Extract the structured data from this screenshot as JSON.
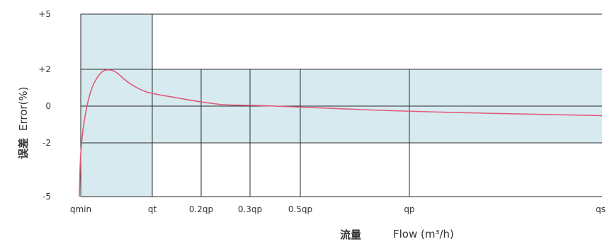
{
  "chart_data": {
    "type": "line",
    "title": "",
    "ylabel_cn": "误差",
    "ylabel": "Error(%)",
    "xlabel_cn": "流量",
    "xlabel": "Flow (m³/h)",
    "y_ticks": [
      {
        "value": 5,
        "label": "+5"
      },
      {
        "value": 2,
        "label": "+2"
      },
      {
        "value": 0,
        "label": "0"
      },
      {
        "value": -2,
        "label": "-2"
      },
      {
        "value": -5,
        "label": "-5"
      }
    ],
    "ylim": [
      -5,
      5
    ],
    "x_categories": [
      {
        "key": "qmin",
        "label": "qmin"
      },
      {
        "key": "qt",
        "label": "qt"
      },
      {
        "key": "0.2qp",
        "label": "0.2qp"
      },
      {
        "key": "0.3qp",
        "label": "0.3qp"
      },
      {
        "key": "0.5qp",
        "label": "0.5qp"
      },
      {
        "key": "qp",
        "label": "qp"
      },
      {
        "key": "qs",
        "label": "qs"
      }
    ],
    "tolerance_zones": [
      {
        "from": "qmin",
        "to": "qt",
        "upper": 5,
        "lower": -5
      },
      {
        "from": "qt",
        "to": "qs",
        "upper": 2,
        "lower": -2
      }
    ],
    "series": [
      {
        "color": "#e05a78",
        "points": [
          {
            "x": -0.02,
            "y": -5.0
          },
          {
            "x": 0.0,
            "y": -1.9
          },
          {
            "x": 0.12,
            "y": 0.8
          },
          {
            "x": 0.28,
            "y": 1.9
          },
          {
            "x": 0.4,
            "y": 2.0
          },
          {
            "x": 0.5,
            "y": 1.85
          },
          {
            "x": 0.65,
            "y": 1.3
          },
          {
            "x": 0.85,
            "y": 0.85
          },
          {
            "x": 1.0,
            "y": 0.68
          },
          {
            "x": 1.5,
            "y": 0.45
          },
          {
            "x": 2.0,
            "y": 0.22
          },
          {
            "x": 2.5,
            "y": 0.05
          },
          {
            "x": 3.0,
            "y": 0.05
          },
          {
            "x": 4.0,
            "y": -0.05
          },
          {
            "x": 5.0,
            "y": -0.3
          },
          {
            "x": 6.0,
            "y": -0.52
          }
        ]
      }
    ],
    "colors": {
      "zone_fill": "#d7eaf0",
      "grid_line": "#2b2b2b",
      "curve": "#e05a78"
    }
  }
}
